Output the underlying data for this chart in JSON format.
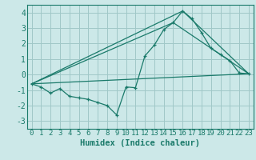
{
  "title": "",
  "xlabel": "Humidex (Indice chaleur)",
  "ylabel": "",
  "background_color": "#cce8e8",
  "grid_color": "#a0c8c8",
  "line_color": "#1a7a6a",
  "xlim": [
    -0.5,
    23.5
  ],
  "ylim": [
    -3.5,
    4.5
  ],
  "xticks": [
    0,
    1,
    2,
    3,
    4,
    5,
    6,
    7,
    8,
    9,
    10,
    11,
    12,
    13,
    14,
    15,
    16,
    17,
    18,
    19,
    20,
    21,
    22,
    23
  ],
  "yticks": [
    -3,
    -2,
    -1,
    0,
    1,
    2,
    3,
    4
  ],
  "series1_x": [
    0,
    1,
    2,
    3,
    4,
    5,
    6,
    7,
    8,
    9,
    10,
    11,
    12,
    13,
    14,
    15,
    16,
    17,
    18,
    19,
    20,
    21,
    22,
    23
  ],
  "series1_y": [
    -0.6,
    -0.8,
    -1.2,
    -0.9,
    -1.4,
    -1.5,
    -1.6,
    -1.8,
    -2.0,
    -2.6,
    -0.8,
    -0.85,
    1.2,
    1.9,
    2.9,
    3.35,
    4.1,
    3.6,
    2.7,
    1.7,
    1.3,
    0.9,
    0.1,
    0.05
  ],
  "series2_x": [
    0,
    23
  ],
  "series2_y": [
    -0.6,
    0.05
  ],
  "series3_x": [
    0,
    15,
    23
  ],
  "series3_y": [
    -0.6,
    3.35,
    0.05
  ],
  "series4_x": [
    0,
    16,
    23
  ],
  "series4_y": [
    -0.6,
    4.1,
    0.05
  ],
  "tick_fontsize": 6.5,
  "xlabel_fontsize": 7.5
}
